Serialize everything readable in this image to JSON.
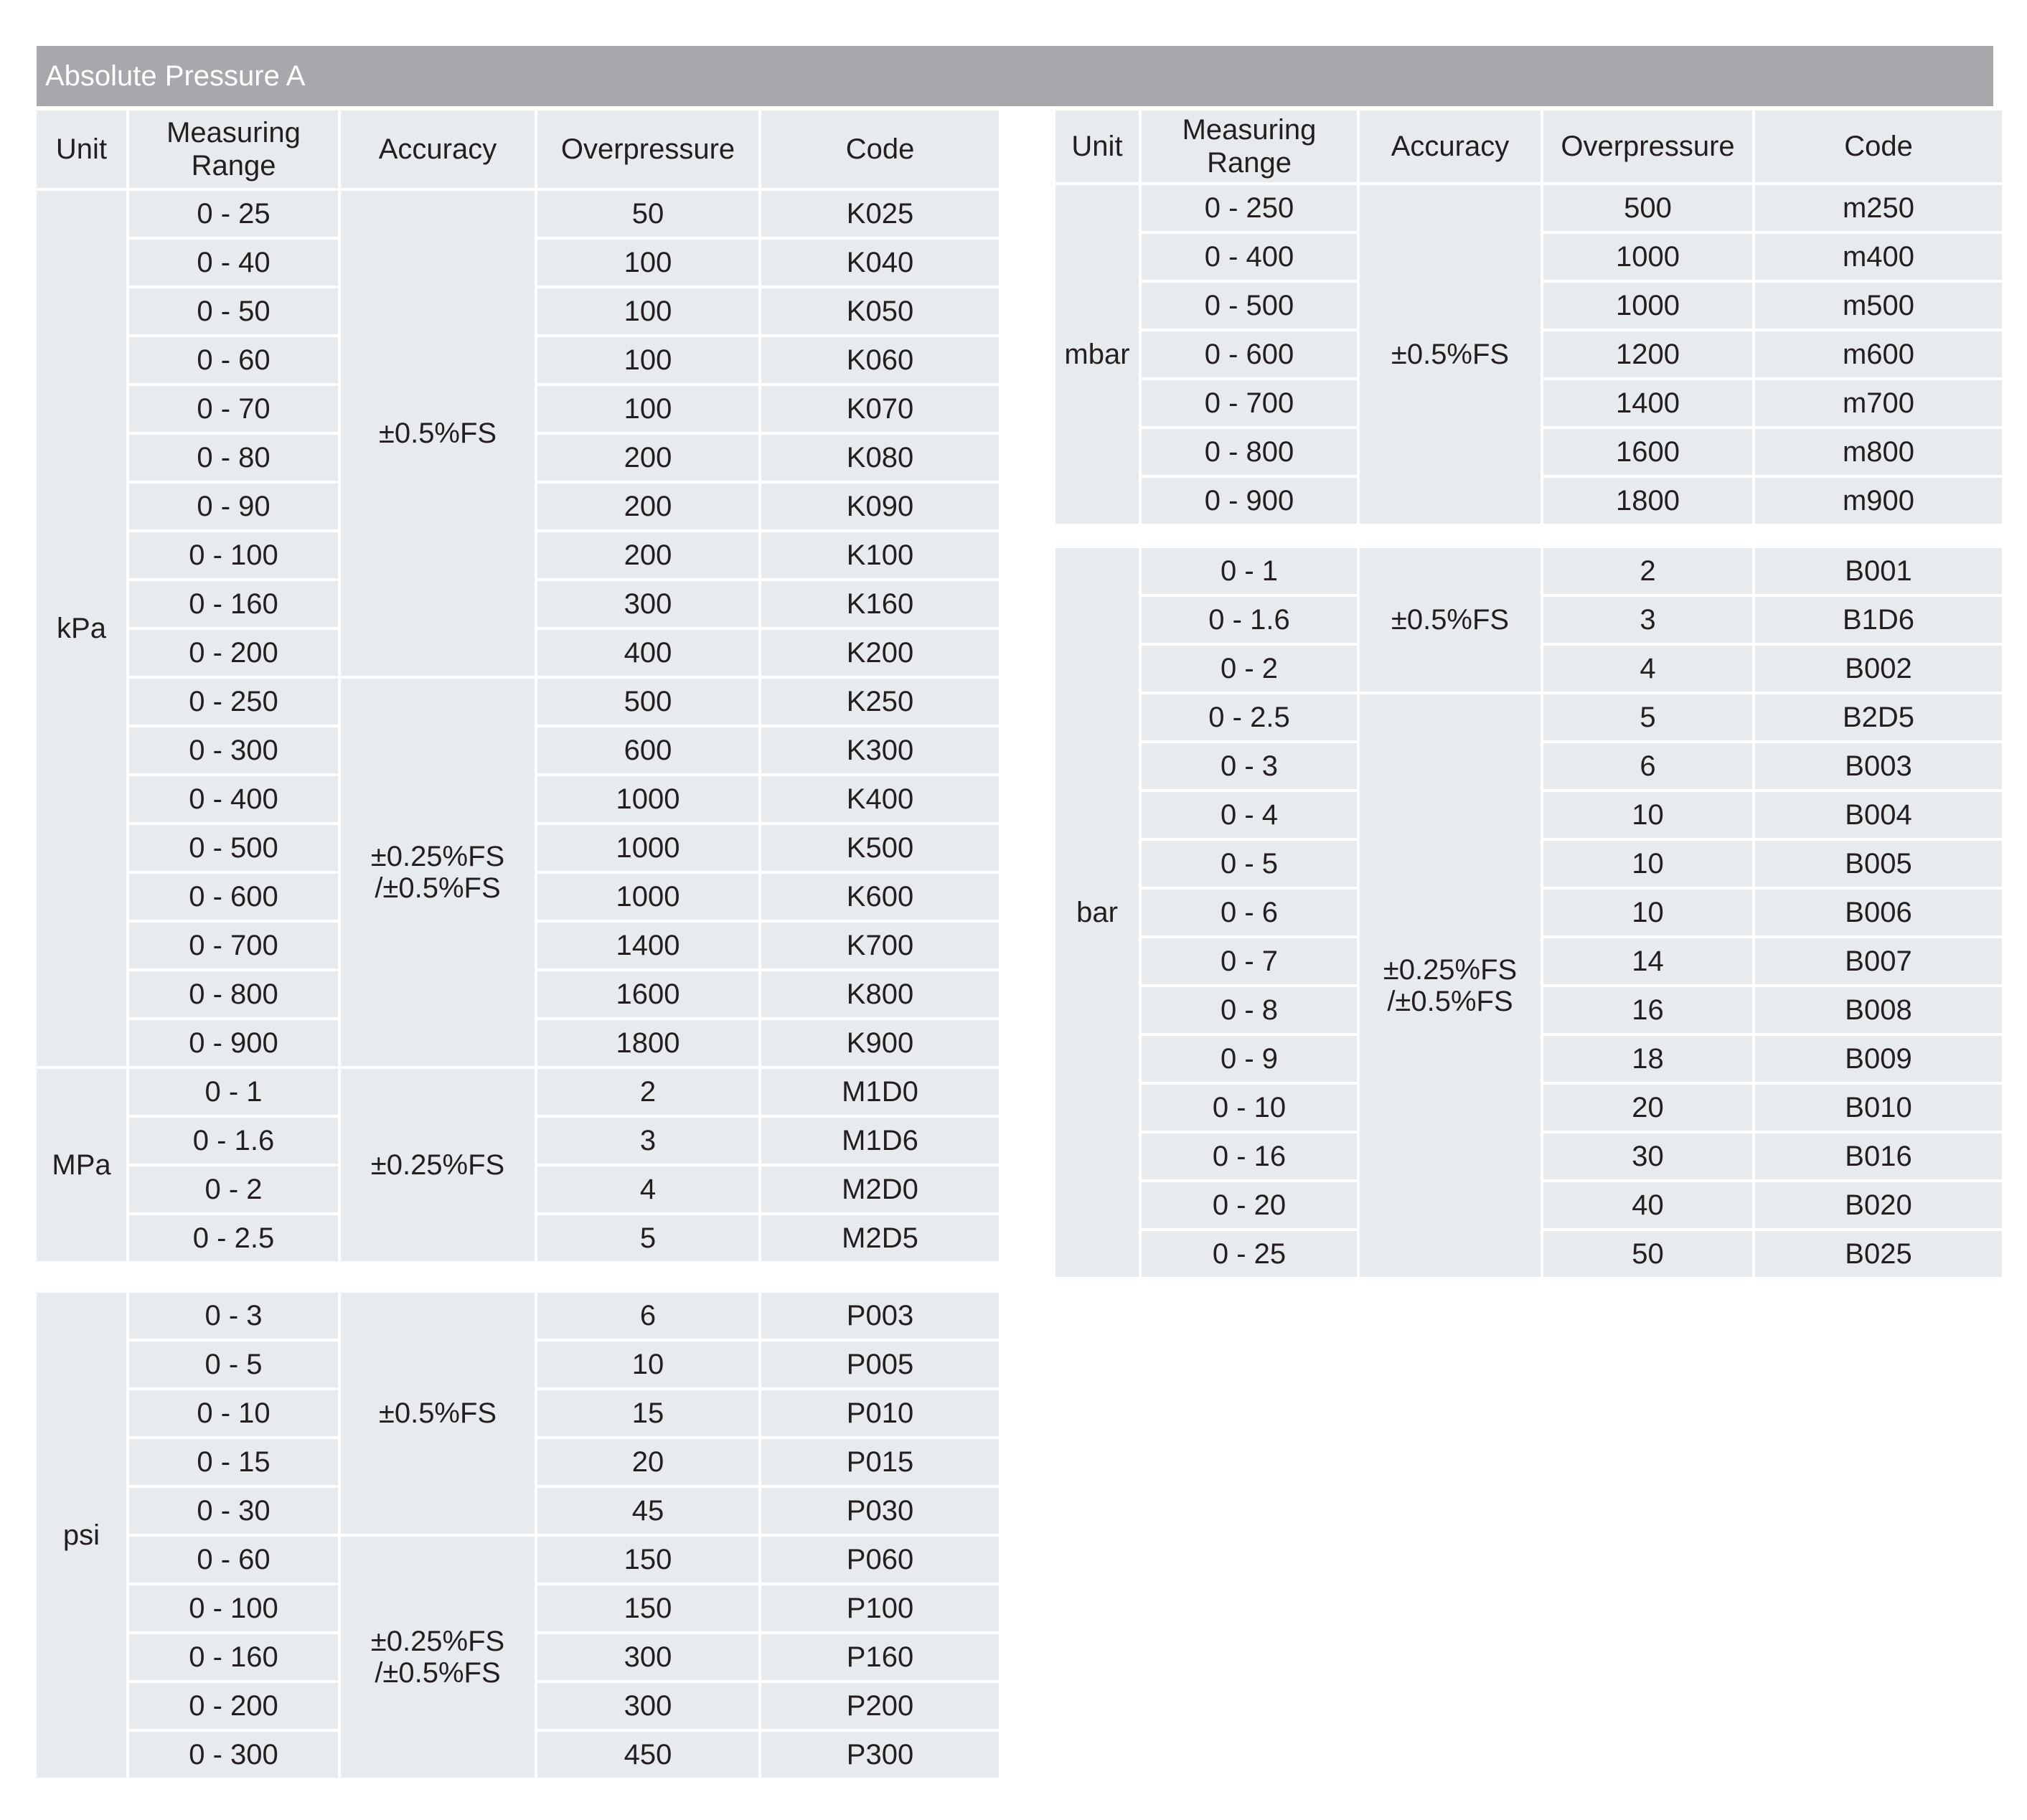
{
  "title": "Absolute Pressure A",
  "colors": {
    "title_bar": "#a7a8ab",
    "cell_bg": "#e8ebee",
    "text": "#231f20"
  },
  "headers": [
    "Unit",
    "Measuring\nRange",
    "Accuracy",
    "Overpressure",
    "Code"
  ],
  "tables": [
    {
      "id": "t1",
      "show_header": true,
      "sections": [
        {
          "unit": "kPa",
          "groups": [
            {
              "accuracy": "±0.5%FS",
              "rows": [
                [
                  "0 - 25",
                  "50",
                  "K025"
                ],
                [
                  "0 - 40",
                  "100",
                  "K040"
                ],
                [
                  "0 - 50",
                  "100",
                  "K050"
                ],
                [
                  "0 - 60",
                  "100",
                  "K060"
                ],
                [
                  "0 - 70",
                  "100",
                  "K070"
                ],
                [
                  "0 - 80",
                  "200",
                  "K080"
                ],
                [
                  "0 - 90",
                  "200",
                  "K090"
                ],
                [
                  "0 - 100",
                  "200",
                  "K100"
                ],
                [
                  "0 - 160",
                  "300",
                  "K160"
                ],
                [
                  "0 - 200",
                  "400",
                  "K200"
                ]
              ]
            },
            {
              "accuracy": "±0.25%FS\n/±0.5%FS",
              "rows": [
                [
                  "0 - 250",
                  "500",
                  "K250"
                ],
                [
                  "0 - 300",
                  "600",
                  "K300"
                ],
                [
                  "0 - 400",
                  "1000",
                  "K400"
                ],
                [
                  "0 - 500",
                  "1000",
                  "K500"
                ],
                [
                  "0 - 600",
                  "1000",
                  "K600"
                ],
                [
                  "0 - 700",
                  "1400",
                  "K700"
                ],
                [
                  "0 - 800",
                  "1600",
                  "K800"
                ],
                [
                  "0 - 900",
                  "1800",
                  "K900"
                ]
              ]
            }
          ]
        },
        {
          "unit": "MPa",
          "groups": [
            {
              "accuracy": "±0.25%FS",
              "rows": [
                [
                  "0 - 1",
                  "2",
                  "M1D0"
                ],
                [
                  "0 - 1.6",
                  "3",
                  "M1D6"
                ],
                [
                  "0 - 2",
                  "4",
                  "M2D0"
                ],
                [
                  "0 - 2.5",
                  "5",
                  "M2D5"
                ]
              ]
            }
          ]
        }
      ]
    },
    {
      "id": "t2",
      "show_header": false,
      "sections": [
        {
          "unit": "psi",
          "groups": [
            {
              "accuracy": "±0.5%FS",
              "rows": [
                [
                  "0 - 3",
                  "6",
                  "P003"
                ],
                [
                  "0 - 5",
                  "10",
                  "P005"
                ],
                [
                  "0 - 10",
                  "15",
                  "P010"
                ],
                [
                  "0 - 15",
                  "20",
                  "P015"
                ],
                [
                  "0 - 30",
                  "45",
                  "P030"
                ]
              ]
            },
            {
              "accuracy": "±0.25%FS\n/±0.5%FS",
              "rows": [
                [
                  "0 - 60",
                  "150",
                  "P060"
                ],
                [
                  "0 - 100",
                  "150",
                  "P100"
                ],
                [
                  "0 - 160",
                  "300",
                  "P160"
                ],
                [
                  "0 - 200",
                  "300",
                  "P200"
                ],
                [
                  "0 - 300",
                  "450",
                  "P300"
                ]
              ]
            }
          ]
        }
      ]
    },
    {
      "id": "t3",
      "show_header": true,
      "sections": [
        {
          "unit": "mbar",
          "groups": [
            {
              "accuracy": "±0.5%FS",
              "rows": [
                [
                  "0 - 250",
                  "500",
                  "m250"
                ],
                [
                  "0 - 400",
                  "1000",
                  "m400"
                ],
                [
                  "0 - 500",
                  "1000",
                  "m500"
                ],
                [
                  "0 - 600",
                  "1200",
                  "m600"
                ],
                [
                  "0 - 700",
                  "1400",
                  "m700"
                ],
                [
                  "0 - 800",
                  "1600",
                  "m800"
                ],
                [
                  "0 - 900",
                  "1800",
                  "m900"
                ]
              ]
            }
          ]
        }
      ]
    },
    {
      "id": "t4",
      "show_header": false,
      "sections": [
        {
          "unit": "bar",
          "groups": [
            {
              "accuracy": "±0.5%FS",
              "rows": [
                [
                  "0 - 1",
                  "2",
                  "B001"
                ],
                [
                  "0 - 1.6",
                  "3",
                  "B1D6"
                ],
                [
                  "0 - 2",
                  "4",
                  "B002"
                ]
              ]
            },
            {
              "accuracy": "±0.25%FS\n/±0.5%FS",
              "rows": [
                [
                  "0 - 2.5",
                  "5",
                  "B2D5"
                ],
                [
                  "0 - 3",
                  "6",
                  "B003"
                ],
                [
                  "0 - 4",
                  "10",
                  "B004"
                ],
                [
                  "0 - 5",
                  "10",
                  "B005"
                ],
                [
                  "0 - 6",
                  "10",
                  "B006"
                ],
                [
                  "0 - 7",
                  "14",
                  "B007"
                ],
                [
                  "0 - 8",
                  "16",
                  "B008"
                ],
                [
                  "0 - 9",
                  "18",
                  "B009"
                ],
                [
                  "0 - 10",
                  "20",
                  "B010"
                ],
                [
                  "0 - 16",
                  "30",
                  "B016"
                ],
                [
                  "0 - 20",
                  "40",
                  "B020"
                ],
                [
                  "0 - 25",
                  "50",
                  "B025"
                ]
              ]
            }
          ]
        }
      ]
    }
  ]
}
